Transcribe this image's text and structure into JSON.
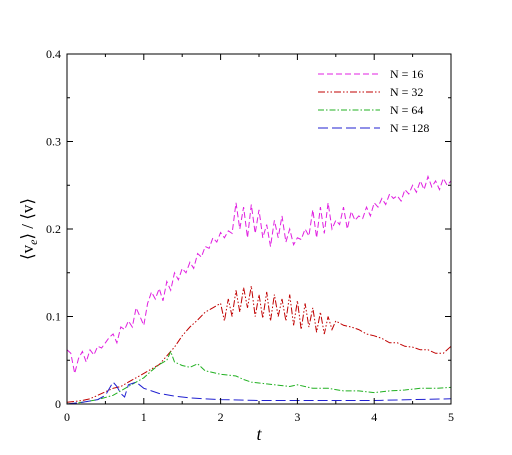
{
  "chart_data": {
    "type": "line",
    "xlabel": "t",
    "ylabel": "⟨v",
    "ylabel_sub": "e",
    "ylabel_rest": "⟩ / ⟨v⟩",
    "xlim": [
      0,
      5
    ],
    "ylim": [
      0,
      0.4
    ],
    "x_ticks": [
      0,
      1,
      2,
      3,
      4,
      5
    ],
    "x_tick_labels": [
      "0",
      "1",
      "2",
      "3",
      "4",
      "5"
    ],
    "y_ticks": [
      0,
      0.1,
      0.2,
      0.3,
      0.4
    ],
    "y_tick_labels": [
      "0",
      "0.1",
      "0.2",
      "0.3",
      "0.4"
    ],
    "grid": false,
    "legend_position": "top-right",
    "series": [
      {
        "name": "N = 16",
        "color": "#e020e0",
        "dash": "6,3",
        "x": [
          0,
          0.05,
          0.1,
          0.15,
          0.2,
          0.25,
          0.3,
          0.35,
          0.4,
          0.45,
          0.5,
          0.55,
          0.6,
          0.65,
          0.7,
          0.75,
          0.8,
          0.85,
          0.9,
          0.95,
          1.0,
          1.05,
          1.1,
          1.15,
          1.2,
          1.25,
          1.3,
          1.35,
          1.4,
          1.45,
          1.5,
          1.55,
          1.6,
          1.65,
          1.7,
          1.75,
          1.8,
          1.85,
          1.9,
          1.95,
          2.0,
          2.05,
          2.1,
          2.15,
          2.2,
          2.25,
          2.3,
          2.35,
          2.4,
          2.45,
          2.5,
          2.55,
          2.6,
          2.65,
          2.7,
          2.75,
          2.8,
          2.85,
          2.9,
          2.95,
          3.0,
          3.05,
          3.1,
          3.15,
          3.2,
          3.25,
          3.3,
          3.35,
          3.4,
          3.45,
          3.5,
          3.55,
          3.6,
          3.65,
          3.7,
          3.75,
          3.8,
          3.85,
          3.9,
          3.95,
          4.0,
          4.05,
          4.1,
          4.15,
          4.2,
          4.25,
          4.3,
          4.35,
          4.4,
          4.45,
          4.5,
          4.55,
          4.6,
          4.65,
          4.7,
          4.75,
          4.8,
          4.85,
          4.9,
          4.95,
          5.0
        ],
        "y": [
          0.062,
          0.058,
          0.035,
          0.052,
          0.06,
          0.048,
          0.062,
          0.056,
          0.066,
          0.064,
          0.07,
          0.076,
          0.08,
          0.07,
          0.088,
          0.085,
          0.095,
          0.088,
          0.11,
          0.1,
          0.09,
          0.115,
          0.128,
          0.12,
          0.132,
          0.118,
          0.14,
          0.13,
          0.15,
          0.142,
          0.155,
          0.15,
          0.162,
          0.155,
          0.172,
          0.168,
          0.18,
          0.178,
          0.19,
          0.185,
          0.196,
          0.19,
          0.198,
          0.195,
          0.23,
          0.2,
          0.225,
          0.19,
          0.228,
          0.195,
          0.222,
          0.19,
          0.205,
          0.18,
          0.21,
          0.19,
          0.215,
          0.185,
          0.2,
          0.182,
          0.19,
          0.188,
          0.2,
          0.192,
          0.222,
          0.19,
          0.225,
          0.195,
          0.23,
          0.2,
          0.21,
          0.205,
          0.225,
          0.2,
          0.22,
          0.21,
          0.215,
          0.212,
          0.225,
          0.215,
          0.23,
          0.225,
          0.235,
          0.228,
          0.24,
          0.235,
          0.238,
          0.232,
          0.245,
          0.24,
          0.25,
          0.242,
          0.255,
          0.245,
          0.26,
          0.248,
          0.255,
          0.245,
          0.258,
          0.25,
          0.255
        ]
      },
      {
        "name": "N = 32",
        "color": "#c00000",
        "dash": "7,2,1.5,2,1.5,2",
        "x": [
          0,
          0.1,
          0.2,
          0.3,
          0.4,
          0.5,
          0.6,
          0.7,
          0.8,
          0.9,
          1.0,
          1.1,
          1.2,
          1.3,
          1.4,
          1.5,
          1.6,
          1.7,
          1.8,
          1.9,
          2.0,
          2.05,
          2.1,
          2.15,
          2.2,
          2.25,
          2.3,
          2.35,
          2.4,
          2.45,
          2.5,
          2.55,
          2.6,
          2.65,
          2.7,
          2.75,
          2.8,
          2.85,
          2.9,
          2.95,
          3.0,
          3.05,
          3.1,
          3.15,
          3.2,
          3.25,
          3.3,
          3.35,
          3.4,
          3.45,
          3.5,
          3.6,
          3.7,
          3.8,
          3.9,
          4.0,
          4.1,
          4.2,
          4.3,
          4.4,
          4.5,
          4.6,
          4.7,
          4.8,
          4.9,
          5.0
        ],
        "y": [
          0.002,
          0.003,
          0.004,
          0.006,
          0.01,
          0.014,
          0.018,
          0.02,
          0.025,
          0.03,
          0.035,
          0.04,
          0.045,
          0.055,
          0.065,
          0.078,
          0.088,
          0.096,
          0.105,
          0.11,
          0.115,
          0.095,
          0.12,
          0.1,
          0.13,
          0.105,
          0.133,
          0.11,
          0.135,
          0.1,
          0.125,
          0.098,
          0.128,
          0.095,
          0.125,
          0.1,
          0.12,
          0.095,
          0.125,
          0.09,
          0.118,
          0.085,
          0.115,
          0.088,
          0.11,
          0.082,
          0.105,
          0.08,
          0.1,
          0.085,
          0.095,
          0.09,
          0.088,
          0.085,
          0.08,
          0.078,
          0.075,
          0.07,
          0.07,
          0.066,
          0.065,
          0.062,
          0.062,
          0.058,
          0.058,
          0.066
        ]
      },
      {
        "name": "N = 64",
        "color": "#20b020",
        "dash": "6,2,1.5,2",
        "x": [
          0,
          0.2,
          0.4,
          0.6,
          0.8,
          1.0,
          1.1,
          1.2,
          1.3,
          1.35,
          1.4,
          1.5,
          1.6,
          1.7,
          1.8,
          1.9,
          2.0,
          2.1,
          2.2,
          2.3,
          2.4,
          2.5,
          2.6,
          2.7,
          2.8,
          2.9,
          3.0,
          3.2,
          3.4,
          3.6,
          3.8,
          4.0,
          4.2,
          4.4,
          4.6,
          4.8,
          5.0
        ],
        "y": [
          0.0,
          0.002,
          0.005,
          0.01,
          0.02,
          0.03,
          0.038,
          0.045,
          0.05,
          0.06,
          0.048,
          0.044,
          0.042,
          0.046,
          0.038,
          0.036,
          0.034,
          0.033,
          0.032,
          0.028,
          0.025,
          0.024,
          0.023,
          0.022,
          0.021,
          0.02,
          0.022,
          0.018,
          0.018,
          0.015,
          0.015,
          0.013,
          0.015,
          0.016,
          0.018,
          0.018,
          0.019
        ]
      },
      {
        "name": "N = 128",
        "color": "#2020d0",
        "dash": "10,4",
        "x": [
          0,
          0.2,
          0.4,
          0.5,
          0.6,
          0.65,
          0.7,
          0.75,
          0.8,
          0.9,
          1.0,
          1.1,
          1.2,
          1.4,
          1.6,
          1.8,
          2.0,
          2.5,
          3.0,
          3.5,
          4.0,
          4.5,
          5.0
        ],
        "y": [
          0.0,
          0.002,
          0.005,
          0.01,
          0.025,
          0.02,
          0.012,
          0.008,
          0.022,
          0.025,
          0.018,
          0.015,
          0.012,
          0.009,
          0.007,
          0.006,
          0.005,
          0.004,
          0.004,
          0.004,
          0.004,
          0.005,
          0.006
        ]
      }
    ]
  }
}
